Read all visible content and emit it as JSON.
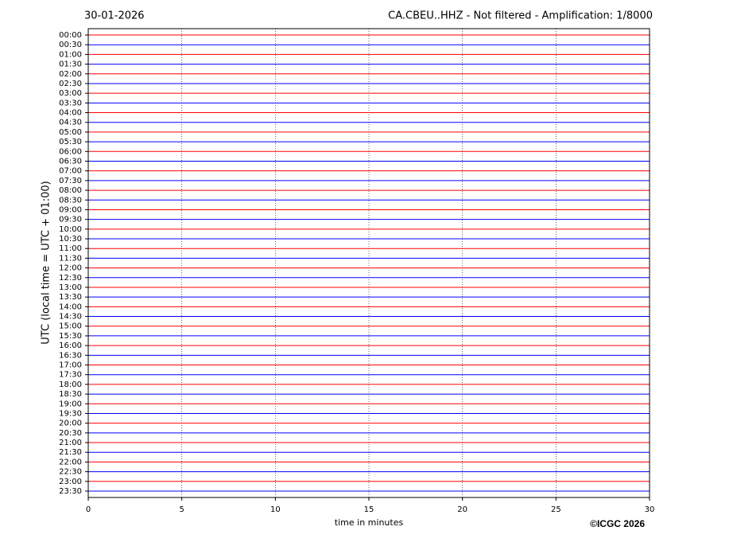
{
  "chart_data": {
    "type": "helicorder",
    "date": "30-01-2026",
    "title": "CA.CBEU..HHZ - Not filtered - Amplification: 1/8000",
    "ylabel": "UTC (local time = UTC + 01:00)",
    "xlabel": "time in minutes",
    "credit": "©ICGC 2026",
    "categories": [
      "00:00",
      "00:30",
      "01:00",
      "01:30",
      "02:00",
      "02:30",
      "03:00",
      "03:30",
      "04:00",
      "04:30",
      "05:00",
      "05:30",
      "06:00",
      "06:30",
      "07:00",
      "07:30",
      "08:00",
      "08:30",
      "09:00",
      "09:30",
      "10:00",
      "10:30",
      "11:00",
      "11:30",
      "12:00",
      "12:30",
      "13:00",
      "13:30",
      "14:00",
      "14:30",
      "15:00",
      "15:30",
      "16:00",
      "16:30",
      "17:00",
      "17:30",
      "18:00",
      "18:30",
      "19:00",
      "19:30",
      "20:00",
      "20:30",
      "21:00",
      "21:30",
      "22:00",
      "22:30",
      "23:00",
      "23:30"
    ],
    "trace_colors": [
      "#ff0000",
      "#0000ff"
    ],
    "xlim": [
      0,
      30
    ],
    "xticks": [
      0,
      5,
      10,
      15,
      20,
      25,
      30
    ],
    "grid": true
  }
}
